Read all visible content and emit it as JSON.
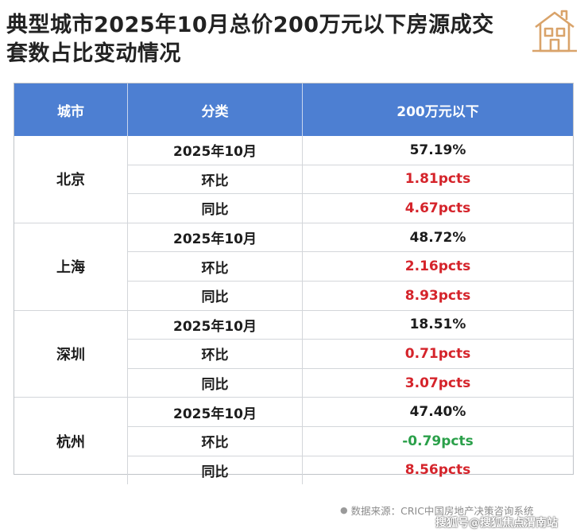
{
  "header": {
    "title": "典型城市2025年10月总价200万元以下房源成交套数占比变动情况",
    "logo_icon": "house-icon",
    "brand_color": "#d9a36a"
  },
  "table": {
    "header_bg": "#4d7fd2",
    "columns": [
      "城市",
      "分类",
      "200万元以下"
    ],
    "groups": [
      {
        "city": "北京",
        "rows": [
          {
            "category": "2025年10月",
            "value": "57.19%",
            "tone": "plain"
          },
          {
            "category": "环比",
            "value": "1.81pcts",
            "tone": "pos"
          },
          {
            "category": "同比",
            "value": "4.67pcts",
            "tone": "pos"
          }
        ]
      },
      {
        "city": "上海",
        "rows": [
          {
            "category": "2025年10月",
            "value": "48.72%",
            "tone": "plain"
          },
          {
            "category": "环比",
            "value": "2.16pcts",
            "tone": "pos"
          },
          {
            "category": "同比",
            "value": "8.93pcts",
            "tone": "pos"
          }
        ]
      },
      {
        "city": "深圳",
        "rows": [
          {
            "category": "2025年10月",
            "value": "18.51%",
            "tone": "plain"
          },
          {
            "category": "环比",
            "value": "0.71pcts",
            "tone": "pos"
          },
          {
            "category": "同比",
            "value": "3.07pcts",
            "tone": "pos"
          }
        ]
      },
      {
        "city": "杭州",
        "rows": [
          {
            "category": "2025年10月",
            "value": "47.40%",
            "tone": "plain"
          },
          {
            "category": "环比",
            "value": "-0.79pcts",
            "tone": "neg"
          },
          {
            "category": "同比",
            "value": "8.56pcts",
            "tone": "pos"
          }
        ]
      }
    ],
    "colors": {
      "positive": "#d5242b",
      "negative": "#2ba04a"
    }
  },
  "footer": {
    "source_icon": "bullet-icon",
    "source": "数据来源：CRIC中国房地产决策咨询系统",
    "watermark": "搜狐号@搜狐焦点渭南站"
  }
}
